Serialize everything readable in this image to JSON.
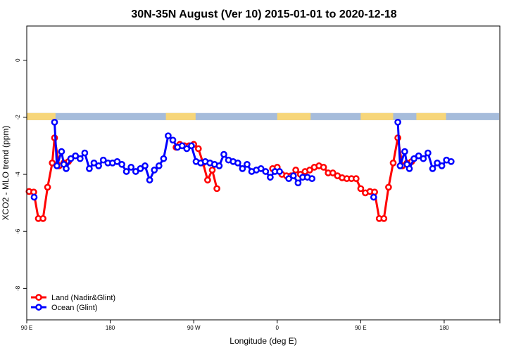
{
  "chart_data": {
    "type": "line",
    "title": "30N-35N August (Ver 10)   2015-01-01 to 2020-12-18",
    "xlabel": "Longitude (deg E)",
    "ylabel": "XCO2 - MLO trend (ppm)",
    "xlim": [
      90,
      600
    ],
    "ylim": [
      -9.1,
      1.2
    ],
    "x_ticks": [
      {
        "value": 90,
        "label": "90 E"
      },
      {
        "value": 180,
        "label": "180"
      },
      {
        "value": 270,
        "label": "90 W"
      },
      {
        "value": 360,
        "label": "0"
      },
      {
        "value": 450,
        "label": "90 E"
      },
      {
        "value": 540,
        "label": "180"
      }
    ],
    "y_ticks": [
      {
        "value": 0,
        "label": "0"
      },
      {
        "value": -2,
        "label": "-2"
      },
      {
        "value": -4,
        "label": "-4"
      },
      {
        "value": -6,
        "label": "-6"
      },
      {
        "value": -8,
        "label": "-8"
      }
    ],
    "grid": false,
    "legend_position": "bottom-left",
    "land_strip": {
      "y_range": [
        -2.1,
        -1.85
      ],
      "land_color": "#F7D67A",
      "ocean_color": "#A6BCDB",
      "land_spans": [
        [
          90,
          121
        ],
        [
          240,
          272
        ],
        [
          360,
          396
        ],
        [
          450,
          485
        ],
        [
          510,
          542
        ]
      ]
    },
    "series": [
      {
        "name": "Land (Nadir&Glint)",
        "color": "#FF0000",
        "segments": [
          [
            [
              92.5,
              -4.6
            ],
            [
              97.5,
              -4.62
            ],
            [
              102.5,
              -5.55
            ],
            [
              107.5,
              -5.55
            ],
            [
              112.5,
              -4.45
            ],
            [
              117.5,
              -3.6
            ],
            [
              120,
              -2.72
            ],
            [
              125,
              -3.7
            ],
            [
              130,
              -3.6
            ],
            [
              135,
              -3.55
            ]
          ],
          [
            [
              251,
              -3.05
            ],
            [
              255,
              -2.95
            ],
            [
              260,
              -3.0
            ],
            [
              265,
              -3.0
            ],
            [
              270,
              -2.95
            ],
            [
              275,
              -3.1
            ],
            [
              280,
              -3.6
            ],
            [
              285,
              -4.2
            ],
            [
              290,
              -3.85
            ],
            [
              295,
              -4.5
            ]
          ],
          [
            [
              355,
              -3.8
            ],
            [
              360,
              -3.75
            ],
            [
              365,
              -4.0
            ],
            [
              370,
              -4.05
            ],
            [
              375,
              -4.05
            ],
            [
              380,
              -3.85
            ],
            [
              385,
              -4.0
            ],
            [
              390,
              -3.9
            ],
            [
              395,
              -3.85
            ],
            [
              400,
              -3.75
            ],
            [
              405,
              -3.7
            ],
            [
              410,
              -3.75
            ],
            [
              415,
              -3.95
            ],
            [
              420,
              -3.95
            ],
            [
              425,
              -4.05
            ],
            [
              430,
              -4.12
            ],
            [
              435,
              -4.15
            ],
            [
              440,
              -4.15
            ],
            [
              445,
              -4.15
            ],
            [
              450,
              -4.5
            ],
            [
              455,
              -4.65
            ],
            [
              460,
              -4.6
            ],
            [
              465,
              -4.62
            ],
            [
              470,
              -5.55
            ],
            [
              475,
              -5.55
            ],
            [
              480,
              -4.45
            ],
            [
              485,
              -3.6
            ],
            [
              490,
              -2.72
            ],
            [
              495,
              -3.7
            ],
            [
              500,
              -3.6
            ],
            [
              505,
              -3.55
            ]
          ]
        ]
      },
      {
        "name": "Ocean (Glint)",
        "color": "#0000FF",
        "segments": [
          [
            [
              98,
              -4.8
            ]
          ],
          [
            [
              120,
              -2.17
            ],
            [
              122.5,
              -3.7
            ],
            [
              127.5,
              -3.2
            ],
            [
              130,
              -3.65
            ],
            [
              132.5,
              -3.8
            ],
            [
              137.5,
              -3.45
            ],
            [
              142.5,
              -3.35
            ],
            [
              147.5,
              -3.45
            ],
            [
              152.5,
              -3.25
            ],
            [
              157.5,
              -3.8
            ],
            [
              162.5,
              -3.6
            ],
            [
              167.5,
              -3.7
            ],
            [
              172.5,
              -3.5
            ],
            [
              177.5,
              -3.6
            ],
            [
              182.5,
              -3.6
            ],
            [
              187.5,
              -3.55
            ],
            [
              192.5,
              -3.65
            ],
            [
              197.5,
              -3.9
            ],
            [
              202.5,
              -3.75
            ],
            [
              207.5,
              -3.9
            ],
            [
              212.5,
              -3.8
            ],
            [
              217.5,
              -3.7
            ],
            [
              222.5,
              -4.2
            ],
            [
              227.5,
              -3.85
            ],
            [
              232.5,
              -3.7
            ],
            [
              237.5,
              -3.45
            ],
            [
              242.5,
              -2.65
            ],
            [
              247.5,
              -2.8
            ],
            [
              252.5,
              -3.05
            ],
            [
              257.5,
              -3.0
            ],
            [
              262.5,
              -3.1
            ],
            [
              267.5,
              -3.0
            ],
            [
              272.5,
              -3.55
            ],
            [
              277.5,
              -3.6
            ],
            [
              282.5,
              -3.55
            ],
            [
              287.5,
              -3.6
            ],
            [
              292.5,
              -3.65
            ],
            [
              297.5,
              -3.7
            ],
            [
              302.5,
              -3.3
            ],
            [
              307.5,
              -3.5
            ],
            [
              312.5,
              -3.55
            ],
            [
              317.5,
              -3.6
            ],
            [
              322.5,
              -3.8
            ],
            [
              327.5,
              -3.65
            ],
            [
              332.5,
              -3.9
            ],
            [
              337.5,
              -3.85
            ],
            [
              342.5,
              -3.8
            ],
            [
              347.5,
              -3.9
            ],
            [
              352.5,
              -4.1
            ],
            [
              357.5,
              -3.9
            ],
            [
              362.5,
              -3.9
            ]
          ],
          [
            [
              372.5,
              -4.15
            ],
            [
              377.5,
              -4.05
            ],
            [
              382.5,
              -4.3
            ],
            [
              387.5,
              -4.1
            ],
            [
              392.5,
              -4.1
            ],
            [
              397.5,
              -4.15
            ]
          ],
          [
            [
              464,
              -4.8
            ]
          ],
          [
            [
              490,
              -2.17
            ],
            [
              492.5,
              -3.7
            ],
            [
              497.5,
              -3.2
            ],
            [
              500,
              -3.65
            ],
            [
              502.5,
              -3.8
            ],
            [
              507.5,
              -3.45
            ],
            [
              512.5,
              -3.35
            ],
            [
              517.5,
              -3.45
            ],
            [
              522.5,
              -3.25
            ],
            [
              527.5,
              -3.8
            ],
            [
              532.5,
              -3.6
            ],
            [
              537.5,
              -3.7
            ],
            [
              542.5,
              -3.5
            ],
            [
              547.5,
              -3.55
            ]
          ]
        ]
      }
    ]
  }
}
